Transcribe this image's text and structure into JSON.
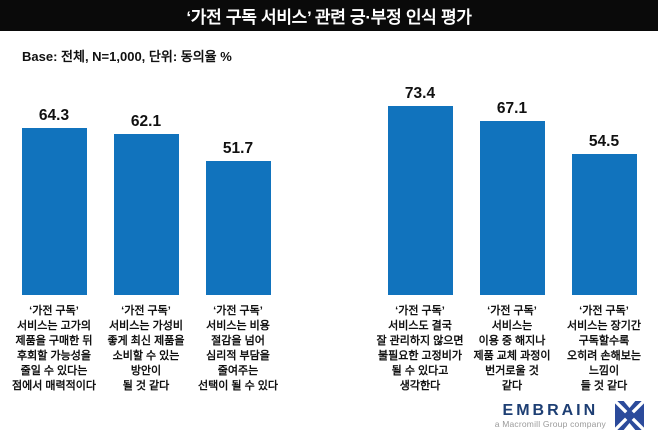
{
  "title": "‘가전 구독 서비스’ 관련 긍·부정 인식 평가",
  "base_note": "Base: 전체, N=1,000, 단위: 동의율 %",
  "chart_data": {
    "type": "bar",
    "title": "‘가전 구독 서비스’ 관련 긍·부정 인식 평가",
    "base": "전체, N=1,000",
    "unit": "동의율 %",
    "ylim": [
      0,
      81
    ],
    "grid": false,
    "bar_color": "#1173bd",
    "value_labels_shown": true,
    "groups": [
      {
        "bars": [
          {
            "label": "‘가전 구독’\n서비스는 고가의\n제품을 구매한 뒤\n후회할 가능성을\n줄일 수 있다는\n점에서 매력적이다",
            "value": 64.3
          },
          {
            "label": "‘가전 구독’\n서비스는 가성비\n좋게 최신 제품을\n소비할 수 있는\n방안이\n될 것 같다",
            "value": 62.1
          },
          {
            "label": "‘가전 구독’\n서비스는 비용\n절감을 넘어\n심리적 부담을\n줄여주는\n선택이 될 수 있다",
            "value": 51.7
          }
        ]
      },
      {
        "bars": [
          {
            "label": "‘가전 구독’\n서비스도 결국\n잘 관리하지 않으면\n불필요한 고정비가\n될 수 있다고\n생각한다",
            "value": 73.4
          },
          {
            "label": "‘가전 구독’\n서비스는\n이용 중 해지나\n제품 교체 과정이\n번거로울 것\n같다",
            "value": 67.1
          },
          {
            "label": "‘가전 구독’\n서비스는 장기간\n구독할수록\n오히려 손해보는\n느낌이\n들 것 같다",
            "value": 54.5
          }
        ]
      }
    ]
  },
  "footer": {
    "brand": "EMBRAIN",
    "tagline": "a Macromill Group company",
    "brand_color": "#1d3e73",
    "mark_color": "#2b4a9b"
  },
  "colors": {
    "title_bar_bg": "#0a0a0a",
    "title_text": "#ffffff",
    "bar_blue": "#1173bd"
  }
}
